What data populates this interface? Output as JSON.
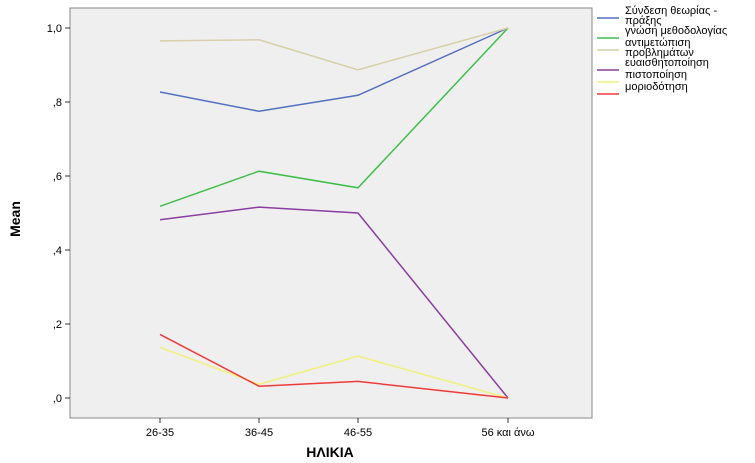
{
  "chart_data": {
    "type": "line",
    "xlabel": "ΗΛΙΚΙΑ",
    "ylabel": "Mean",
    "categories": [
      "26-35",
      "36-45",
      "46-55",
      "56 και άνω"
    ],
    "ylim": [
      0,
      1.0
    ],
    "yticks": [
      0.0,
      0.2,
      0.4,
      0.6,
      0.8,
      1.0
    ],
    "ytick_labels": [
      ",0",
      ",2",
      ",4",
      ",6",
      ",8",
      "1,0"
    ],
    "grid": false,
    "plot_background": "#efefef",
    "legend_position": "right",
    "series": [
      {
        "name": "Σύνδεση θεωρίας - πράξης",
        "legend_lines": [
          "Σύνδεση θεωρίας -",
          "πράξης"
        ],
        "color": "#5470c0",
        "values": [
          0.827,
          0.775,
          0.818,
          1.0
        ]
      },
      {
        "name": "γνώση μεθοδολογίας",
        "legend_lines": [
          "γνώση μεθοδολογίας"
        ],
        "color": "#3fbf4a",
        "values": [
          0.518,
          0.613,
          0.568,
          1.0
        ]
      },
      {
        "name": "αντιμετώπιση προβλημάτων",
        "legend_lines": [
          "αντιμετώπιση",
          "προβλημάτων"
        ],
        "color": "#d8cfa8",
        "values": [
          0.965,
          0.968,
          0.887,
          1.0
        ]
      },
      {
        "name": "ευαισθητοποίηση",
        "legend_lines": [
          "ευαισθητοποίηση"
        ],
        "color": "#8a3ea0",
        "values": [
          0.482,
          0.516,
          0.5,
          0.0
        ]
      },
      {
        "name": "πιστοποίηση",
        "legend_lines": [
          "πιστοποίηση"
        ],
        "color": "#f3f07a",
        "values": [
          0.137,
          0.037,
          0.113,
          0.0
        ]
      },
      {
        "name": "μοριοδότηση",
        "legend_lines": [
          "μοριοδότηση"
        ],
        "color": "#f03a3a",
        "values": [
          0.172,
          0.032,
          0.045,
          0.0
        ]
      }
    ]
  }
}
